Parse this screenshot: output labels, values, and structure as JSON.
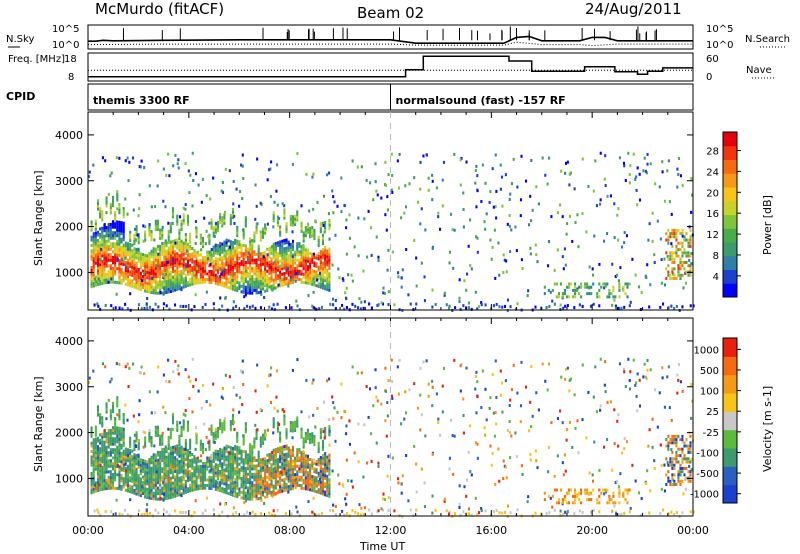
{
  "header": {
    "station": "McMurdo (fitACF)",
    "beam": "Beam 02",
    "date": "24/Aug/2011"
  },
  "chart_data": [
    {
      "type": "line",
      "panel": "noise",
      "left_label": "N.Sky",
      "right_label": "N.Search",
      "left_ticks": [
        "10^5",
        "10^0"
      ],
      "right_ticks": [
        "10^5",
        "10^0"
      ],
      "scale": "log",
      "series": [
        {
          "style": "solid",
          "x": [
            0,
            0.3,
            0.6,
            1.0,
            3.0,
            6.0,
            9.0,
            12.0,
            13.0,
            16.5,
            17.0,
            17.5,
            18.0,
            19.5,
            20.0,
            20.5,
            21.0,
            24.0
          ],
          "y": [
            1.2,
            1.2,
            1.4,
            1.3,
            1.4,
            1.5,
            1.5,
            1.5,
            0.8,
            0.8,
            2.0,
            2.2,
            1.3,
            1.3,
            2.0,
            2.0,
            1.3,
            1.3
          ]
        },
        {
          "style": "dotted",
          "x": [
            0,
            3,
            6,
            9,
            12,
            13,
            16.5,
            17,
            18,
            19.5,
            20,
            21,
            24
          ],
          "y": [
            0.5,
            0.6,
            0.6,
            0.6,
            0.6,
            0.4,
            0.4,
            1.0,
            0.5,
            0.5,
            0.3,
            0.6,
            0.6
          ]
        }
      ]
    },
    {
      "type": "line",
      "panel": "frequency",
      "left_label": "Freq. [MHz]",
      "right_label": "Nave",
      "left_ticks": [
        "18",
        "8"
      ],
      "right_ticks": [
        "60",
        "0"
      ],
      "series": [
        {
          "style": "solid",
          "x": [
            0,
            0.05,
            12.6,
            12.6,
            13.3,
            13.3,
            16.7,
            16.7,
            17.6,
            17.6,
            19.1,
            19.1,
            19.7,
            19.7,
            20.9,
            20.9,
            21.8,
            21.8,
            22.2,
            22.2,
            22.8,
            22.8,
            24
          ],
          "y": [
            8,
            8,
            8,
            11.2,
            11.2,
            17.5,
            17.5,
            15.3,
            15.3,
            10.5,
            10.5,
            10.5,
            10.5,
            12.6,
            12.6,
            10.3,
            10.3,
            9.1,
            9.1,
            10.5,
            10.5,
            12.1,
            12.1
          ]
        },
        {
          "style": "dotted",
          "x": [
            0,
            24
          ],
          "y": [
            11,
            11
          ]
        }
      ]
    },
    {
      "type": "table",
      "panel": "cpid",
      "label": "CPID",
      "segments": [
        {
          "start": 0,
          "end": 12.0,
          "text": "themis 3300 RF"
        },
        {
          "start": 12.0,
          "end": 24,
          "text": "normalsound (fast) -157 RF"
        }
      ]
    },
    {
      "type": "heatmap",
      "panel": "power",
      "ylabel": "Slant Range [km]",
      "xlim": [
        0,
        24
      ],
      "ylim": [
        180,
        4500
      ],
      "yticks": [
        1000,
        2000,
        3000,
        4000
      ],
      "colorbar": {
        "label": "Power [dB]",
        "range": [
          0,
          32
        ],
        "ticks": [
          "28",
          "24",
          "20",
          "16",
          "12",
          "8",
          "4"
        ],
        "colors": [
          "#0000ff",
          "#1c3fd0",
          "#2f7fa8",
          "#3d9a6e",
          "#4bab4a",
          "#7fc53a",
          "#c8d22a",
          "#f6c518",
          "#f59a16",
          "#f56a12",
          "#f03510",
          "#e6000d"
        ]
      }
    },
    {
      "type": "heatmap",
      "panel": "velocity",
      "ylabel": "Slant Range [km]",
      "xlabel": "Time UT",
      "xlim": [
        0,
        24
      ],
      "ylim": [
        180,
        4500
      ],
      "yticks": [
        1000,
        2000,
        3000,
        4000
      ],
      "xticks": [
        "00:00",
        "04:00",
        "08:00",
        "12:00",
        "16:00",
        "20:00",
        "00:00"
      ],
      "colorbar": {
        "label": "Velocity [m s-1]",
        "ticks": [
          "1000",
          "500",
          "100",
          "25",
          "-25",
          "-100",
          "-500",
          "-1000"
        ],
        "colors": [
          "#1c3fd0",
          "#2a5fc0",
          "#3d9a6e",
          "#5cba3c",
          "#c8c8c8",
          "#f6c518",
          "#f59a16",
          "#f56a12",
          "#e8200d"
        ]
      }
    }
  ]
}
